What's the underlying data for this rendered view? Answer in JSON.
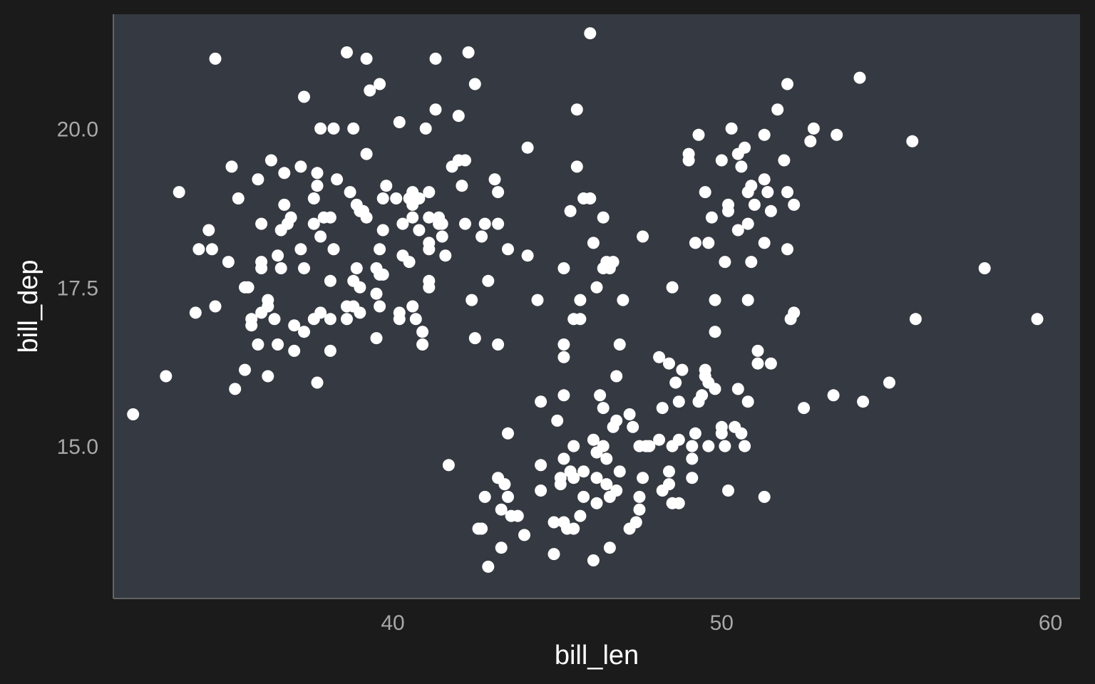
{
  "chart_data": {
    "type": "scatter",
    "title": "",
    "xlabel": "bill_len",
    "ylabel": "bill_dep",
    "xlim": [
      31.5,
      60.9
    ],
    "ylim": [
      12.6,
      21.8
    ],
    "xticks": [
      40,
      50,
      60
    ],
    "xtick_labels": [
      "40",
      "50",
      "60"
    ],
    "yticks": [
      15.0,
      17.5,
      20.0
    ],
    "ytick_labels": [
      "15.0",
      "17.5",
      "20.0"
    ],
    "grid": false,
    "legend": "none",
    "colors": {
      "background": "#1b1b1b",
      "panel": "#353941",
      "point": "#ffffff",
      "tick_text": "#a8a8a8",
      "axis_line": "#777777"
    },
    "points": [
      [
        32.1,
        15.5
      ],
      [
        33.1,
        16.1
      ],
      [
        33.5,
        19.0
      ],
      [
        34.0,
        17.1
      ],
      [
        34.1,
        18.1
      ],
      [
        34.4,
        18.4
      ],
      [
        34.5,
        18.1
      ],
      [
        34.6,
        21.1
      ],
      [
        34.6,
        17.2
      ],
      [
        35.0,
        17.9
      ],
      [
        35.1,
        19.4
      ],
      [
        35.2,
        15.9
      ],
      [
        35.3,
        18.9
      ],
      [
        35.5,
        16.2
      ],
      [
        35.5,
        17.5
      ],
      [
        35.6,
        17.5
      ],
      [
        35.7,
        17.0
      ],
      [
        35.7,
        16.9
      ],
      [
        35.9,
        19.2
      ],
      [
        35.9,
        16.6
      ],
      [
        36.0,
        18.5
      ],
      [
        36.0,
        17.9
      ],
      [
        36.0,
        17.8
      ],
      [
        36.0,
        17.1
      ],
      [
        36.2,
        17.2
      ],
      [
        36.2,
        17.3
      ],
      [
        36.2,
        16.1
      ],
      [
        36.3,
        19.5
      ],
      [
        36.4,
        17.0
      ],
      [
        36.5,
        18.0
      ],
      [
        36.5,
        16.6
      ],
      [
        36.6,
        17.8
      ],
      [
        36.6,
        18.4
      ],
      [
        36.7,
        18.8
      ],
      [
        36.7,
        19.3
      ],
      [
        36.8,
        18.5
      ],
      [
        36.9,
        18.6
      ],
      [
        37.0,
        16.9
      ],
      [
        37.0,
        16.5
      ],
      [
        37.2,
        18.1
      ],
      [
        37.2,
        19.4
      ],
      [
        37.3,
        20.5
      ],
      [
        37.3,
        16.8
      ],
      [
        37.3,
        17.8
      ],
      [
        37.6,
        18.5
      ],
      [
        37.6,
        17.0
      ],
      [
        37.6,
        18.9
      ],
      [
        37.7,
        19.3
      ],
      [
        37.7,
        16.0
      ],
      [
        37.7,
        19.1
      ],
      [
        37.8,
        18.3
      ],
      [
        37.8,
        17.1
      ],
      [
        37.8,
        20.0
      ],
      [
        37.9,
        18.6
      ],
      [
        38.1,
        17.6
      ],
      [
        38.1,
        17.0
      ],
      [
        38.1,
        18.6
      ],
      [
        38.1,
        16.5
      ],
      [
        38.2,
        18.1
      ],
      [
        38.2,
        20.0
      ],
      [
        38.3,
        19.2
      ],
      [
        38.6,
        21.2
      ],
      [
        38.6,
        17.2
      ],
      [
        38.6,
        17.0
      ],
      [
        38.7,
        19.0
      ],
      [
        38.8,
        17.2
      ],
      [
        38.8,
        20.0
      ],
      [
        38.8,
        17.6
      ],
      [
        38.9,
        18.8
      ],
      [
        38.9,
        17.8
      ],
      [
        39.0,
        17.5
      ],
      [
        39.0,
        18.7
      ],
      [
        39.0,
        17.1
      ],
      [
        39.1,
        18.7
      ],
      [
        39.2,
        19.6
      ],
      [
        39.2,
        18.6
      ],
      [
        39.2,
        21.1
      ],
      [
        39.3,
        20.6
      ],
      [
        39.5,
        16.7
      ],
      [
        39.5,
        17.4
      ],
      [
        39.5,
        17.8
      ],
      [
        39.6,
        17.7
      ],
      [
        39.6,
        18.1
      ],
      [
        39.6,
        20.7
      ],
      [
        39.6,
        17.2
      ],
      [
        39.7,
        18.4
      ],
      [
        39.7,
        17.7
      ],
      [
        39.7,
        18.9
      ],
      [
        39.8,
        19.1
      ],
      [
        40.1,
        18.9
      ],
      [
        40.2,
        17.0
      ],
      [
        40.2,
        17.1
      ],
      [
        40.2,
        20.1
      ],
      [
        40.3,
        18.0
      ],
      [
        40.3,
        18.5
      ],
      [
        40.5,
        18.9
      ],
      [
        40.5,
        17.9
      ],
      [
        40.6,
        18.6
      ],
      [
        40.6,
        17.2
      ],
      [
        40.6,
        18.8
      ],
      [
        40.6,
        19.0
      ],
      [
        40.7,
        17.0
      ],
      [
        40.8,
        18.4
      ],
      [
        40.8,
        18.9
      ],
      [
        40.9,
        16.8
      ],
      [
        40.9,
        16.6
      ],
      [
        41.0,
        20.0
      ],
      [
        41.1,
        18.6
      ],
      [
        41.1,
        17.5
      ],
      [
        41.1,
        18.2
      ],
      [
        41.1,
        17.6
      ],
      [
        41.1,
        19.0
      ],
      [
        41.1,
        18.1
      ],
      [
        41.3,
        20.3
      ],
      [
        41.3,
        21.1
      ],
      [
        41.4,
        18.6
      ],
      [
        41.4,
        18.5
      ],
      [
        41.5,
        18.5
      ],
      [
        41.5,
        18.3
      ],
      [
        41.6,
        18.0
      ],
      [
        41.7,
        14.7
      ],
      [
        41.8,
        19.4
      ],
      [
        42.0,
        20.2
      ],
      [
        42.0,
        19.5
      ],
      [
        42.1,
        19.1
      ],
      [
        42.2,
        18.5
      ],
      [
        42.2,
        19.5
      ],
      [
        42.3,
        21.2
      ],
      [
        42.4,
        17.3
      ],
      [
        42.5,
        20.7
      ],
      [
        42.5,
        16.7
      ],
      [
        42.6,
        13.7
      ],
      [
        42.7,
        18.3
      ],
      [
        42.7,
        13.7
      ],
      [
        42.8,
        14.2
      ],
      [
        42.8,
        18.5
      ],
      [
        42.9,
        17.6
      ],
      [
        42.9,
        13.1
      ],
      [
        43.1,
        19.2
      ],
      [
        43.2,
        18.5
      ],
      [
        43.2,
        19.0
      ],
      [
        43.2,
        16.6
      ],
      [
        43.2,
        14.5
      ],
      [
        43.3,
        14.0
      ],
      [
        43.3,
        13.4
      ],
      [
        43.4,
        14.4
      ],
      [
        43.5,
        18.1
      ],
      [
        43.5,
        15.2
      ],
      [
        43.5,
        14.2
      ],
      [
        43.6,
        13.9
      ],
      [
        43.8,
        13.9
      ],
      [
        44.0,
        13.6
      ],
      [
        44.1,
        19.7
      ],
      [
        44.1,
        18.0
      ],
      [
        44.4,
        17.3
      ],
      [
        44.5,
        15.7
      ],
      [
        44.5,
        14.3
      ],
      [
        44.5,
        14.7
      ],
      [
        44.9,
        13.8
      ],
      [
        44.9,
        13.3
      ],
      [
        45.0,
        15.4
      ],
      [
        45.1,
        14.5
      ],
      [
        45.1,
        14.4
      ],
      [
        45.2,
        17.8
      ],
      [
        45.2,
        16.6
      ],
      [
        45.2,
        16.4
      ],
      [
        45.2,
        15.8
      ],
      [
        45.2,
        14.8
      ],
      [
        45.2,
        13.8
      ],
      [
        45.3,
        13.7
      ],
      [
        45.4,
        18.7
      ],
      [
        45.4,
        14.6
      ],
      [
        45.5,
        17.0
      ],
      [
        45.5,
        15.0
      ],
      [
        45.5,
        14.5
      ],
      [
        45.5,
        13.7
      ],
      [
        45.6,
        19.4
      ],
      [
        45.6,
        20.3
      ],
      [
        45.7,
        17.0
      ],
      [
        45.7,
        17.3
      ],
      [
        45.7,
        13.9
      ],
      [
        45.8,
        18.9
      ],
      [
        45.8,
        14.6
      ],
      [
        45.8,
        14.2
      ],
      [
        46.0,
        21.5
      ],
      [
        46.0,
        18.9
      ],
      [
        46.1,
        18.2
      ],
      [
        46.1,
        15.1
      ],
      [
        46.1,
        13.2
      ],
      [
        46.2,
        17.5
      ],
      [
        46.2,
        14.1
      ],
      [
        46.2,
        14.9
      ],
      [
        46.2,
        14.5
      ],
      [
        46.3,
        15.8
      ],
      [
        46.4,
        17.8
      ],
      [
        46.4,
        15.6
      ],
      [
        46.4,
        15.0
      ],
      [
        46.4,
        18.6
      ],
      [
        46.5,
        17.9
      ],
      [
        46.5,
        14.4
      ],
      [
        46.5,
        14.8
      ],
      [
        46.6,
        17.8
      ],
      [
        46.6,
        14.2
      ],
      [
        46.6,
        13.4
      ],
      [
        46.7,
        17.9
      ],
      [
        46.7,
        15.3
      ],
      [
        46.8,
        14.3
      ],
      [
        46.8,
        15.4
      ],
      [
        46.8,
        16.1
      ],
      [
        46.9,
        16.6
      ],
      [
        46.9,
        14.6
      ],
      [
        47.0,
        17.3
      ],
      [
        47.2,
        15.5
      ],
      [
        47.2,
        13.7
      ],
      [
        47.3,
        15.3
      ],
      [
        47.4,
        13.8
      ],
      [
        47.5,
        14.2
      ],
      [
        47.5,
        15.0
      ],
      [
        47.5,
        14.0
      ],
      [
        47.6,
        14.5
      ],
      [
        47.6,
        18.3
      ],
      [
        47.7,
        15.0
      ],
      [
        47.8,
        15.0
      ],
      [
        48.1,
        15.1
      ],
      [
        48.1,
        16.4
      ],
      [
        48.2,
        14.3
      ],
      [
        48.2,
        15.6
      ],
      [
        48.4,
        14.6
      ],
      [
        48.4,
        14.4
      ],
      [
        48.4,
        16.3
      ],
      [
        48.5,
        15.0
      ],
      [
        48.5,
        17.5
      ],
      [
        48.5,
        14.1
      ],
      [
        48.6,
        16.0
      ],
      [
        48.7,
        15.1
      ],
      [
        48.7,
        15.7
      ],
      [
        48.7,
        14.1
      ],
      [
        48.8,
        16.2
      ],
      [
        49.0,
        19.5
      ],
      [
        49.0,
        19.6
      ],
      [
        49.1,
        14.5
      ],
      [
        49.1,
        14.8
      ],
      [
        49.1,
        15.0
      ],
      [
        49.2,
        18.2
      ],
      [
        49.2,
        15.2
      ],
      [
        49.3,
        15.7
      ],
      [
        49.3,
        19.9
      ],
      [
        49.4,
        15.8
      ],
      [
        49.5,
        19.0
      ],
      [
        49.5,
        16.2
      ],
      [
        49.5,
        16.1
      ],
      [
        49.6,
        18.2
      ],
      [
        49.6,
        16.0
      ],
      [
        49.6,
        15.0
      ],
      [
        49.7,
        18.6
      ],
      [
        49.8,
        17.3
      ],
      [
        49.8,
        16.8
      ],
      [
        49.8,
        15.9
      ],
      [
        50.0,
        19.5
      ],
      [
        50.0,
        15.2
      ],
      [
        50.0,
        15.3
      ],
      [
        50.1,
        17.9
      ],
      [
        50.1,
        15.0
      ],
      [
        50.2,
        14.3
      ],
      [
        50.2,
        18.7
      ],
      [
        50.2,
        18.8
      ],
      [
        50.3,
        20.0
      ],
      [
        50.4,
        15.3
      ],
      [
        50.5,
        18.4
      ],
      [
        50.5,
        19.6
      ],
      [
        50.5,
        15.9
      ],
      [
        50.6,
        19.4
      ],
      [
        50.6,
        15.2
      ],
      [
        50.7,
        19.7
      ],
      [
        50.7,
        15.0
      ],
      [
        50.8,
        19.0
      ],
      [
        50.8,
        18.5
      ],
      [
        50.8,
        17.3
      ],
      [
        50.8,
        15.7
      ],
      [
        50.9,
        19.1
      ],
      [
        50.9,
        17.9
      ],
      [
        51.0,
        18.8
      ],
      [
        51.1,
        16.5
      ],
      [
        51.1,
        16.3
      ],
      [
        51.3,
        19.9
      ],
      [
        51.3,
        19.2
      ],
      [
        51.3,
        18.2
      ],
      [
        51.3,
        14.2
      ],
      [
        51.4,
        19.0
      ],
      [
        51.5,
        18.7
      ],
      [
        51.5,
        16.3
      ],
      [
        51.7,
        20.3
      ],
      [
        51.9,
        19.5
      ],
      [
        52.0,
        19.0
      ],
      [
        52.0,
        20.7
      ],
      [
        52.0,
        18.1
      ],
      [
        52.1,
        17.0
      ],
      [
        52.2,
        18.8
      ],
      [
        52.2,
        17.1
      ],
      [
        52.5,
        15.6
      ],
      [
        52.7,
        19.8
      ],
      [
        52.8,
        20.0
      ],
      [
        53.4,
        15.8
      ],
      [
        53.5,
        19.9
      ],
      [
        54.2,
        20.8
      ],
      [
        54.3,
        15.7
      ],
      [
        55.1,
        16.0
      ],
      [
        55.8,
        19.8
      ],
      [
        55.9,
        17.0
      ],
      [
        58.0,
        17.8
      ],
      [
        59.6,
        17.0
      ]
    ]
  }
}
